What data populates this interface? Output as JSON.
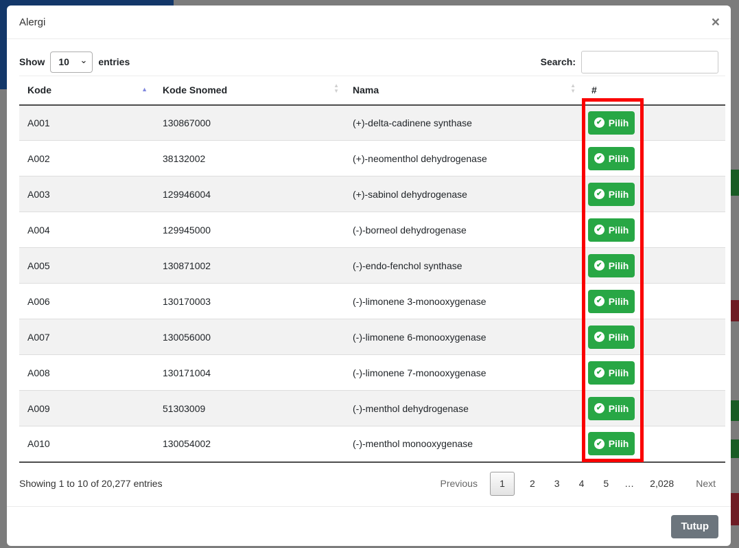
{
  "modal": {
    "title": "Alergi",
    "close_icon": "×",
    "length_control": {
      "label_before": "Show",
      "value": "10",
      "label_after": "entries"
    },
    "search": {
      "label": "Search:",
      "value": ""
    },
    "table": {
      "columns": [
        {
          "label": "Kode",
          "sort": "asc"
        },
        {
          "label": "Kode Snomed",
          "sort": "both"
        },
        {
          "label": "Nama",
          "sort": "both"
        },
        {
          "label": "#",
          "sort": "none"
        }
      ],
      "action_label": "Pilih",
      "rows": [
        {
          "kode": "A001",
          "snomed": "130867000",
          "nama": "(+)-delta-cadinene synthase"
        },
        {
          "kode": "A002",
          "snomed": "38132002",
          "nama": "(+)-neomenthol dehydrogenase"
        },
        {
          "kode": "A003",
          "snomed": "129946004",
          "nama": "(+)-sabinol dehydrogenase"
        },
        {
          "kode": "A004",
          "snomed": "129945000",
          "nama": "(-)-borneol dehydrogenase"
        },
        {
          "kode": "A005",
          "snomed": "130871002",
          "nama": "(-)-endo-fenchol synthase"
        },
        {
          "kode": "A006",
          "snomed": "130170003",
          "nama": "(-)-limonene 3-monooxygenase"
        },
        {
          "kode": "A007",
          "snomed": "130056000",
          "nama": "(-)-limonene 6-monooxygenase"
        },
        {
          "kode": "A008",
          "snomed": "130171004",
          "nama": "(-)-limonene 7-monooxygenase"
        },
        {
          "kode": "A009",
          "snomed": "51303009",
          "nama": "(-)-menthol dehydrogenase"
        },
        {
          "kode": "A010",
          "snomed": "130054002",
          "nama": "(-)-menthol monooxygenase"
        }
      ]
    },
    "info_text": "Showing 1 to 10 of 20,277 entries",
    "pagination": {
      "previous": "Previous",
      "pages": [
        {
          "label": "1",
          "state": "current"
        },
        {
          "label": "2",
          "state": "link"
        },
        {
          "label": "3",
          "state": "link"
        },
        {
          "label": "4",
          "state": "link"
        },
        {
          "label": "5",
          "state": "link"
        },
        {
          "label": "…",
          "state": "ellipsis"
        },
        {
          "label": "2,028",
          "state": "link"
        }
      ],
      "next": "Next"
    },
    "footer_button": "Tutup"
  },
  "icons": {
    "sort_asc": "▲",
    "sort_up": "▲",
    "sort_down": "▼",
    "check": "✔",
    "select_chevron": "⌄"
  },
  "colors": {
    "green": "#28a745",
    "red_annotation": "#fa0000",
    "navy": "#133769",
    "backdrop": "#7c7c7c",
    "tutup_gray": "#6c757d",
    "frag_green": "#185c24",
    "frag_maroon": "#6e1c24"
  }
}
